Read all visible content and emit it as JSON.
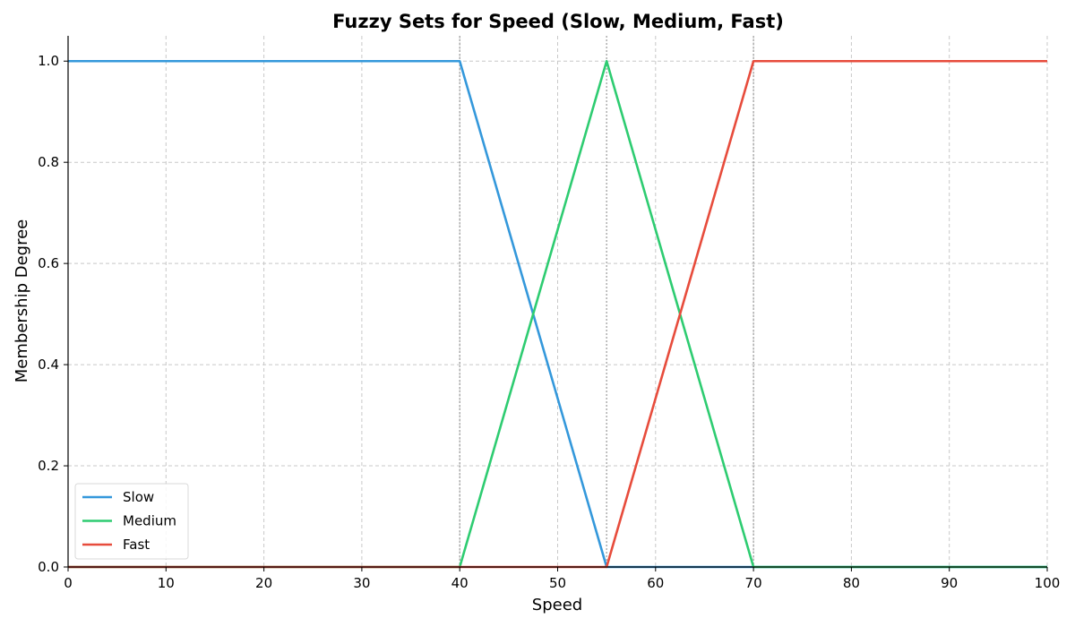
{
  "chart_data": {
    "type": "line",
    "title": "Fuzzy Sets for Speed (Slow, Medium, Fast)",
    "xlabel": "Speed",
    "ylabel": "Membership Degree",
    "xlim": [
      0,
      100
    ],
    "ylim": [
      0,
      1.05
    ],
    "xticks": [
      "0",
      "10",
      "20",
      "30",
      "40",
      "50",
      "60",
      "70",
      "80",
      "90",
      "100"
    ],
    "yticks": [
      "0.0",
      "0.2",
      "0.4",
      "0.6",
      "0.8",
      "1.0"
    ],
    "grid": true,
    "legend_position": "lower-left",
    "vertical_reference_lines": [
      40,
      55,
      70
    ],
    "series": [
      {
        "name": "Slow",
        "color": "#3498db",
        "x": [
          0,
          40,
          55,
          100
        ],
        "y": [
          1,
          1,
          0,
          0
        ]
      },
      {
        "name": "Medium",
        "color": "#2ecc71",
        "x": [
          0,
          40,
          55,
          70,
          100
        ],
        "y": [
          0,
          0,
          1,
          0,
          0
        ]
      },
      {
        "name": "Fast",
        "color": "#e74c3c",
        "x": [
          0,
          55,
          70,
          100
        ],
        "y": [
          0,
          0,
          1,
          1
        ]
      }
    ]
  }
}
